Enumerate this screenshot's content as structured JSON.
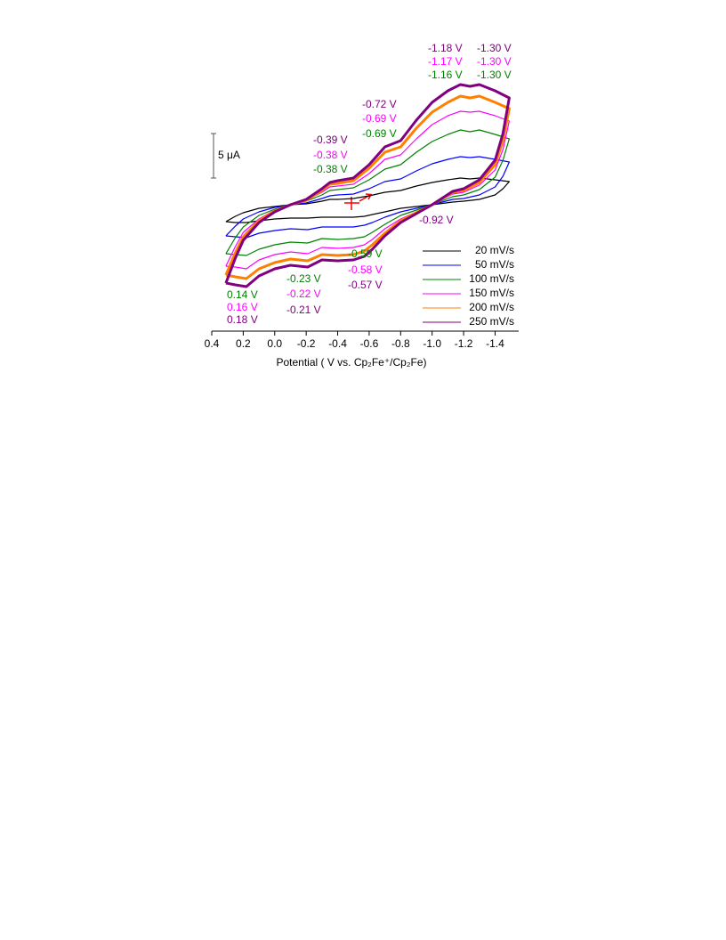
{
  "chart_data": {
    "type": "line",
    "xlabel": "Potential ( V vs. Cp₂Fe⁺/Cp₂Fe)",
    "xlim": [
      0.4,
      -1.55
    ],
    "ylim": [
      -14.5,
      14.5
    ],
    "xticks": [
      0.4,
      0.2,
      {
        "value": 0,
        "label": "0.0"
      },
      -0.2,
      -0.4,
      -0.6,
      -0.8,
      {
        "value": -1,
        "label": "-1.0"
      },
      -1.2,
      -1.4
    ],
    "scale_bar": {
      "value": 5,
      "label": "5 μA"
    },
    "x": [
      0.31,
      0.25,
      0.2,
      0.1,
      0.0,
      -0.1,
      -0.2,
      -0.3,
      -0.35,
      -0.4,
      -0.5,
      -0.6,
      -0.7,
      -0.8,
      -0.9,
      -1.0,
      -1.1,
      -1.18,
      -1.24,
      -1.3,
      -1.4,
      -1.49,
      -1.45,
      -1.4,
      -1.3,
      -1.2,
      -1.13,
      -1.0,
      -0.9,
      -0.8,
      -0.7,
      -0.62,
      -0.57,
      -0.5,
      -0.4,
      -0.3,
      -0.21,
      -0.1,
      0.0,
      0.1,
      0.18,
      0.25,
      0.31
    ],
    "series": [
      {
        "name": "20 mV/s",
        "color": "#000000",
        "values": [
          -1.9,
          -1.3,
          -0.9,
          -0.4,
          -0.2,
          0.0,
          0.1,
          0.4,
          0.6,
          0.6,
          0.7,
          1.0,
          1.4,
          1.6,
          2.1,
          2.5,
          2.8,
          3.0,
          2.9,
          3.0,
          2.8,
          2.6,
          1.8,
          1.1,
          0.6,
          0.4,
          0.3,
          0.0,
          -0.2,
          -0.4,
          -0.8,
          -1.1,
          -1.3,
          -1.4,
          -1.4,
          -1.4,
          -1.5,
          -1.5,
          -1.6,
          -1.8,
          -2.0,
          -2.0,
          -1.9
        ]
      },
      {
        "name": "50 mV/s",
        "color": "#0000ff",
        "values": [
          -3.5,
          -2.4,
          -1.6,
          -0.8,
          -0.3,
          0.0,
          0.2,
          0.7,
          1.0,
          1.1,
          1.2,
          1.8,
          2.6,
          2.9,
          3.8,
          4.6,
          5.1,
          5.4,
          5.3,
          5.4,
          5.1,
          4.8,
          3.2,
          2.0,
          1.1,
          0.7,
          0.6,
          0.0,
          -0.4,
          -0.8,
          -1.4,
          -2.0,
          -2.3,
          -2.5,
          -2.5,
          -2.5,
          -2.8,
          -2.7,
          -2.9,
          -3.2,
          -3.7,
          -3.6,
          -3.5
        ]
      },
      {
        "name": "100 mV/s",
        "color": "#008000",
        "values": [
          -5.5,
          -3.7,
          -2.5,
          -1.2,
          -0.5,
          0.0,
          0.4,
          1.1,
          1.6,
          1.7,
          1.9,
          2.8,
          4.0,
          4.5,
          5.9,
          7.1,
          7.9,
          8.4,
          8.2,
          8.4,
          7.9,
          7.4,
          5.0,
          3.1,
          1.7,
          1.1,
          0.9,
          0.0,
          -0.6,
          -1.2,
          -2.2,
          -3.1,
          -3.6,
          -3.8,
          -3.9,
          -3.8,
          -4.3,
          -4.2,
          -4.5,
          -5.0,
          -5.7,
          -5.6,
          -5.5
        ]
      },
      {
        "name": "150 mV/s",
        "color": "#ff00ff",
        "values": [
          -6.9,
          -4.7,
          -3.1,
          -1.6,
          -0.6,
          0.0,
          0.5,
          1.4,
          2.0,
          2.1,
          2.3,
          3.5,
          5.1,
          5.6,
          7.4,
          9.0,
          10.0,
          10.5,
          10.4,
          10.5,
          10.0,
          9.4,
          6.2,
          3.9,
          2.2,
          1.4,
          1.2,
          0.0,
          -0.8,
          -1.6,
          -2.7,
          -3.9,
          -4.5,
          -4.8,
          -4.9,
          -4.8,
          -5.5,
          -5.3,
          -5.6,
          -6.2,
          -7.2,
          -7.0,
          -6.9
        ]
      },
      {
        "name": "200 mV/s",
        "color": "#ff8000",
        "values": [
          -7.9,
          -5.4,
          -3.6,
          -1.8,
          -0.7,
          0.0,
          0.5,
          1.6,
          2.3,
          2.4,
          2.7,
          4.1,
          5.9,
          6.5,
          8.6,
          10.4,
          11.5,
          12.2,
          12.0,
          12.2,
          11.5,
          10.8,
          7.2,
          4.5,
          2.5,
          1.6,
          1.4,
          0.0,
          -0.9,
          -1.8,
          -3.2,
          -4.5,
          -5.2,
          -5.6,
          -5.7,
          -5.6,
          -6.3,
          -6.1,
          -6.5,
          -7.2,
          -8.3,
          -8.1,
          -7.9
        ]
      },
      {
        "name": "250 mV/s",
        "color": "#800080",
        "values": [
          -8.8,
          -6.0,
          -4.0,
          -2.0,
          -0.8,
          0.0,
          0.6,
          1.8,
          2.5,
          2.7,
          3.0,
          4.5,
          6.5,
          7.2,
          9.5,
          11.5,
          12.8,
          13.5,
          13.3,
          13.5,
          12.8,
          12.0,
          8.0,
          5.0,
          2.8,
          1.8,
          1.5,
          0.0,
          -1.0,
          -2.0,
          -3.5,
          -5.0,
          -5.8,
          -6.2,
          -6.3,
          -6.2,
          -7.0,
          -6.8,
          -7.2,
          -8.0,
          -9.2,
          -9.0,
          -8.8
        ]
      }
    ],
    "annotations": [
      {
        "text": "-1.18 V",
        "color": "#800080"
      },
      {
        "text": "-1.30 V",
        "color": "#800080"
      },
      {
        "text": "-1.17 V",
        "color": "#ff00ff"
      },
      {
        "text": "-1.30 V",
        "color": "#ff00ff"
      },
      {
        "text": "-1.16 V",
        "color": "#008000"
      },
      {
        "text": "-1.30 V",
        "color": "#008000"
      },
      {
        "text": "-0.72 V",
        "color": "#800080"
      },
      {
        "text": "-0.69 V",
        "color": "#ff00ff"
      },
      {
        "text": "-0.69 V",
        "color": "#008000"
      },
      {
        "text": "-0.39 V",
        "color": "#800080"
      },
      {
        "text": "-0.38 V",
        "color": "#ff00ff"
      },
      {
        "text": "-0.38 V",
        "color": "#008000"
      },
      {
        "text": "-0.92 V",
        "color": "#800080"
      },
      {
        "text": "-0.59 V",
        "color": "#008000"
      },
      {
        "text": "-0.58 V",
        "color": "#ff00ff"
      },
      {
        "text": "-0.57 V",
        "color": "#800080"
      },
      {
        "text": "-0.23 V",
        "color": "#008000"
      },
      {
        "text": "-0.22 V",
        "color": "#ff00ff"
      },
      {
        "text": "-0.21 V",
        "color": "#800080"
      },
      {
        "text": "0.14 V",
        "color": "#008000"
      },
      {
        "text": "0.16 V",
        "color": "#ff00ff"
      },
      {
        "text": "0.18 V",
        "color": "#800080"
      }
    ]
  }
}
